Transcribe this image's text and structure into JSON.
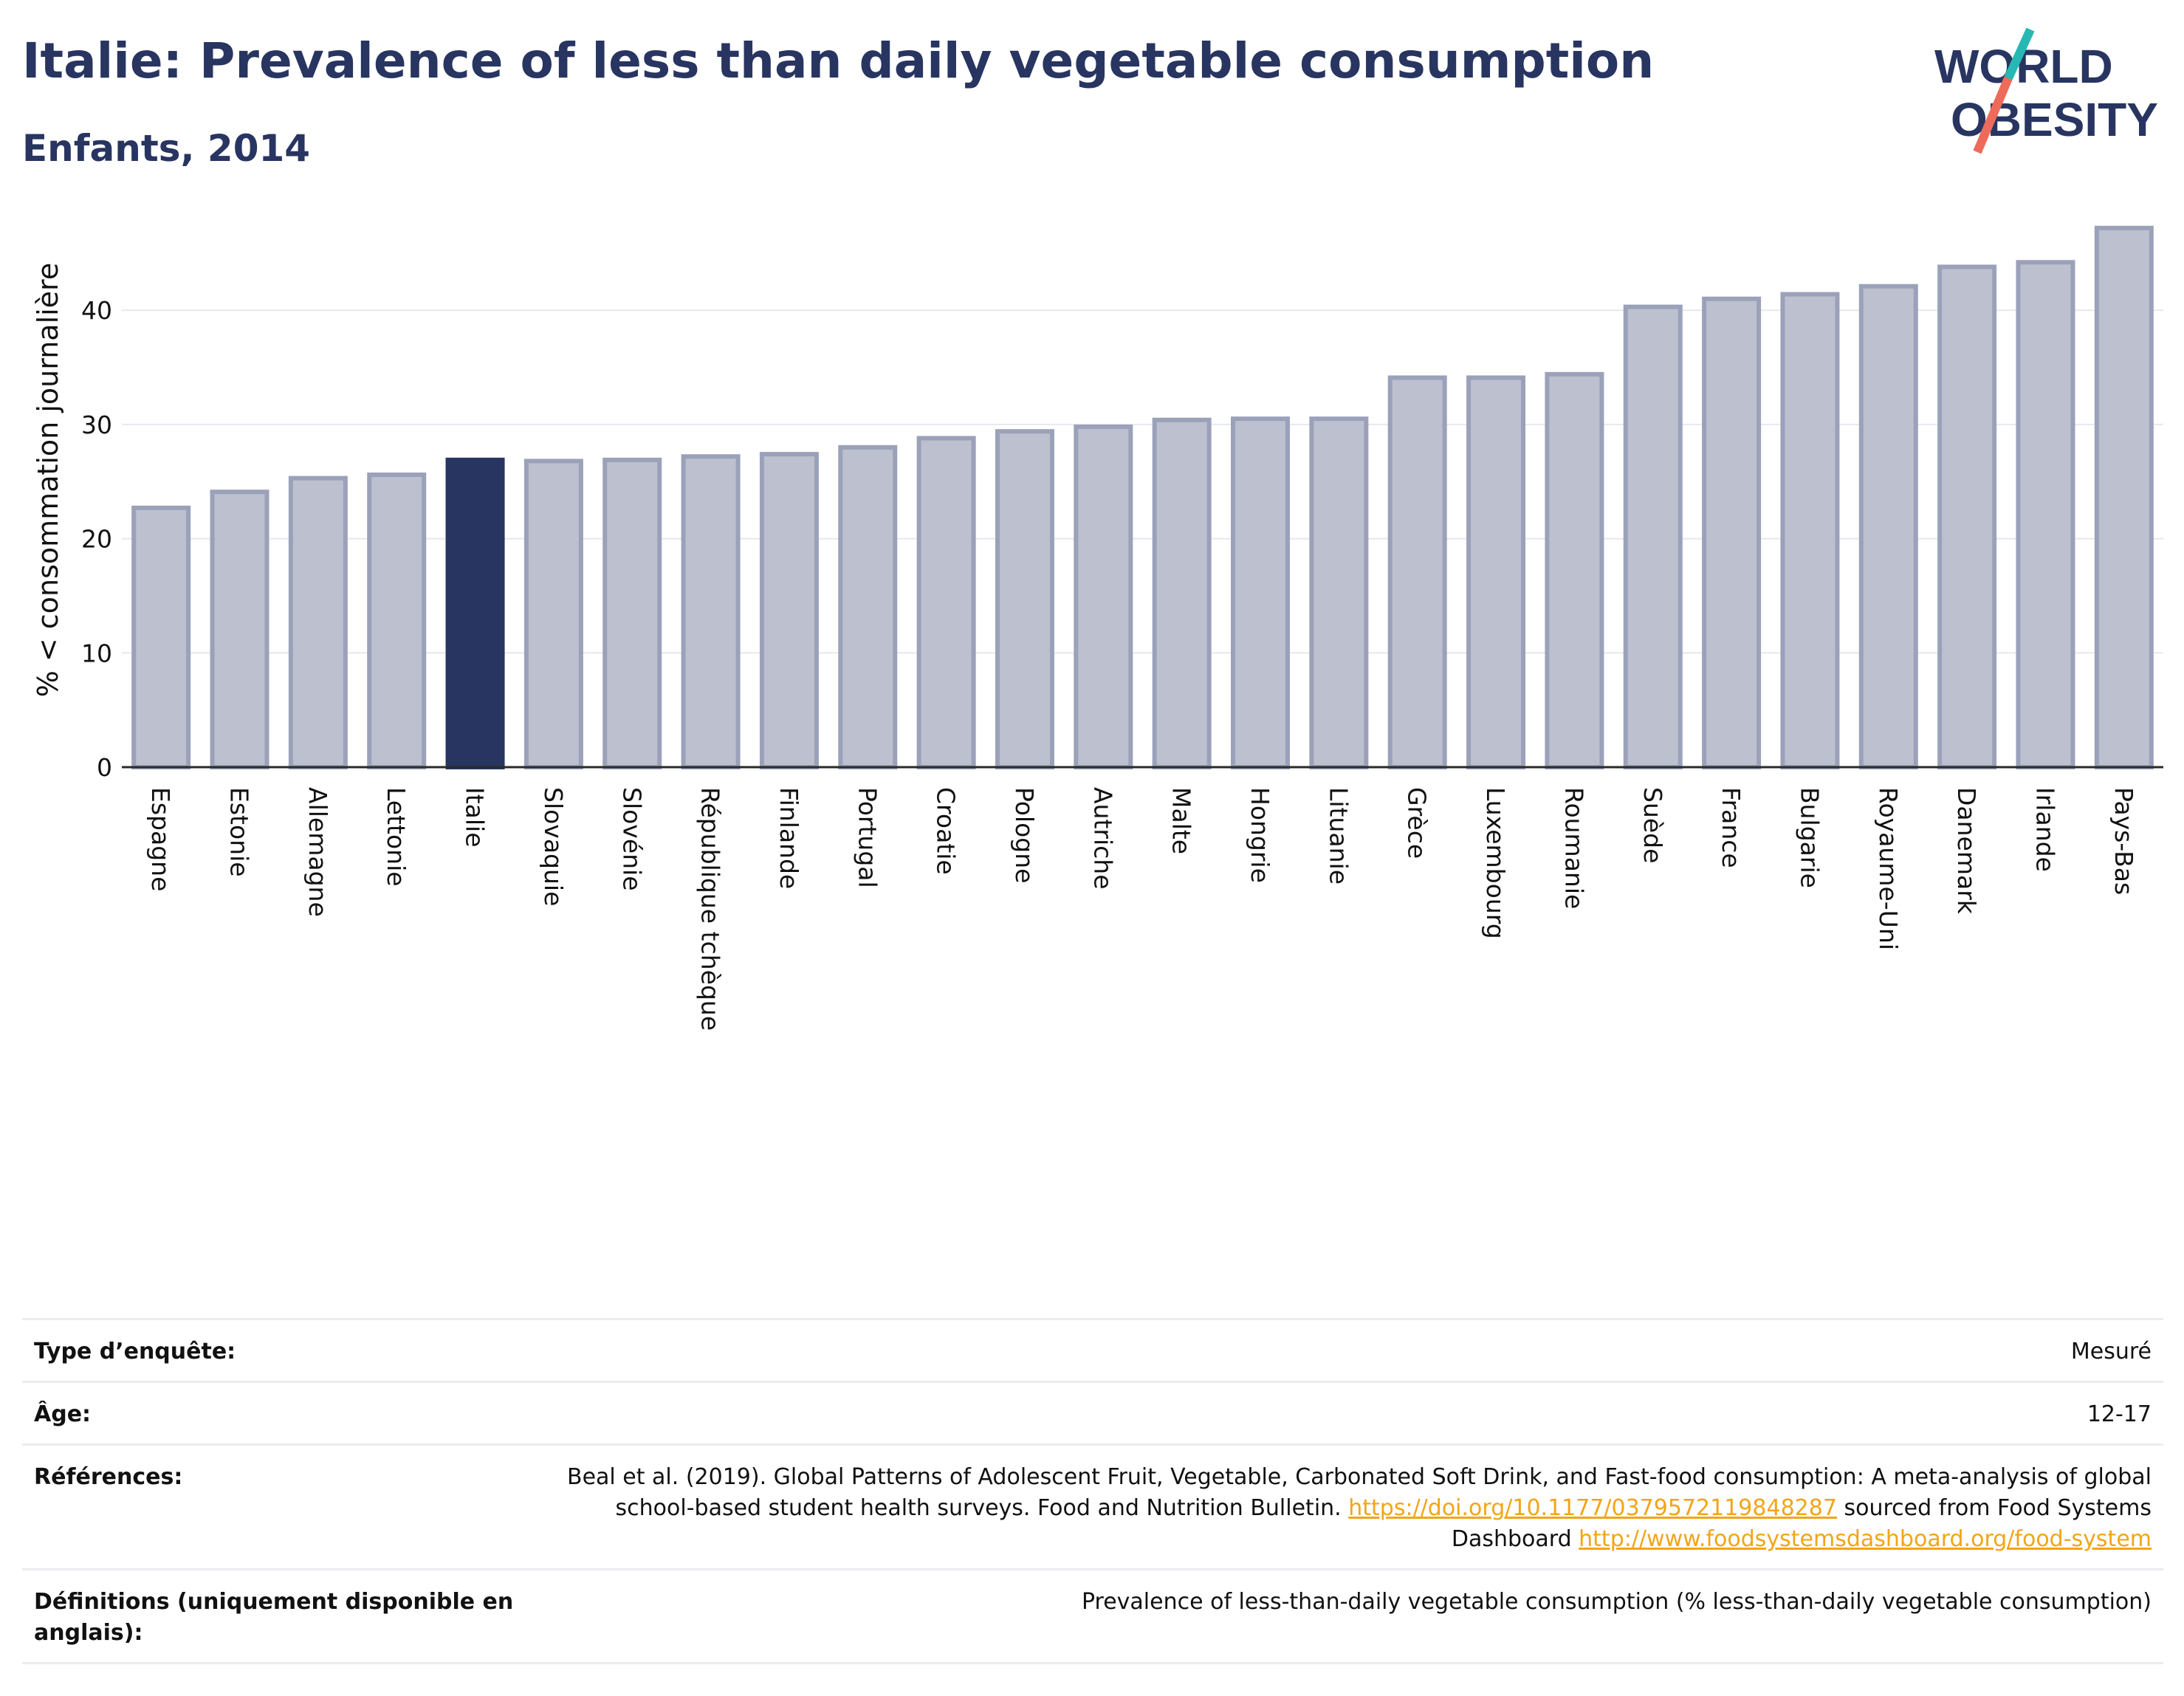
{
  "header": {
    "title": "Italie: Prevalence of less than daily vegetable consumption",
    "subtitle": "Enfants, 2014",
    "logo_line1": "WORLD",
    "logo_line2": "OBESITY"
  },
  "colors": {
    "title": "#283561",
    "bar_default": "#bcc0cf",
    "bar_default_stroke": "#9ba1b9",
    "bar_highlight": "#283561",
    "logo_teal": "#27b8b4",
    "logo_coral": "#ee6b5b",
    "link": "#f2a516"
  },
  "chart_data": {
    "type": "bar",
    "ylabel": "% < consommation journalière",
    "xlabel": "",
    "ylim": [
      0,
      48
    ],
    "yticks": [
      0,
      10,
      20,
      30,
      40
    ],
    "grid": true,
    "highlight": "Italie",
    "categories": [
      "Espagne",
      "Estonie",
      "Allemagne",
      "Lettonie",
      "Italie",
      "Slovaquie",
      "Slovénie",
      "République tchèque",
      "Finlande",
      "Portugal",
      "Croatie",
      "Pologne",
      "Autriche",
      "Malte",
      "Hongrie",
      "Lituanie",
      "Grèce",
      "Luxembourg",
      "Roumanie",
      "Suède",
      "France",
      "Bulgarie",
      "Royaume-Uni",
      "Danemark",
      "Irlande",
      "Pays-Bas"
    ],
    "values": [
      22.7,
      24.1,
      25.3,
      25.6,
      26.9,
      26.8,
      26.9,
      27.2,
      27.4,
      28.0,
      28.8,
      29.4,
      29.8,
      30.4,
      30.5,
      30.5,
      34.1,
      34.1,
      34.4,
      40.3,
      41.0,
      41.4,
      42.1,
      43.8,
      44.2,
      47.2
    ]
  },
  "meta": [
    {
      "label": "Type d’enquête:",
      "value": "Mesuré"
    },
    {
      "label": "Âge:",
      "value": "12-17"
    },
    {
      "label": "Références:",
      "value_text1": "Beal et al. (2019). Global Patterns of Adolescent Fruit, Vegetable, Carbonated Soft Drink, and Fast-food consumption: A meta-analysis of global school-based student health surveys. Food and Nutrition Bulletin. ",
      "link1": "https://doi.org/10.1177/0379572119848287",
      "value_text2": " sourced from Food Systems Dashboard ",
      "link2": "http://www.foodsystemsdashboard.org/food-system"
    },
    {
      "label": "Définitions (uniquement disponible en anglais):",
      "value": "Prevalence of less-than-daily vegetable consumption (% less-than-daily vegetable consumption)"
    }
  ]
}
